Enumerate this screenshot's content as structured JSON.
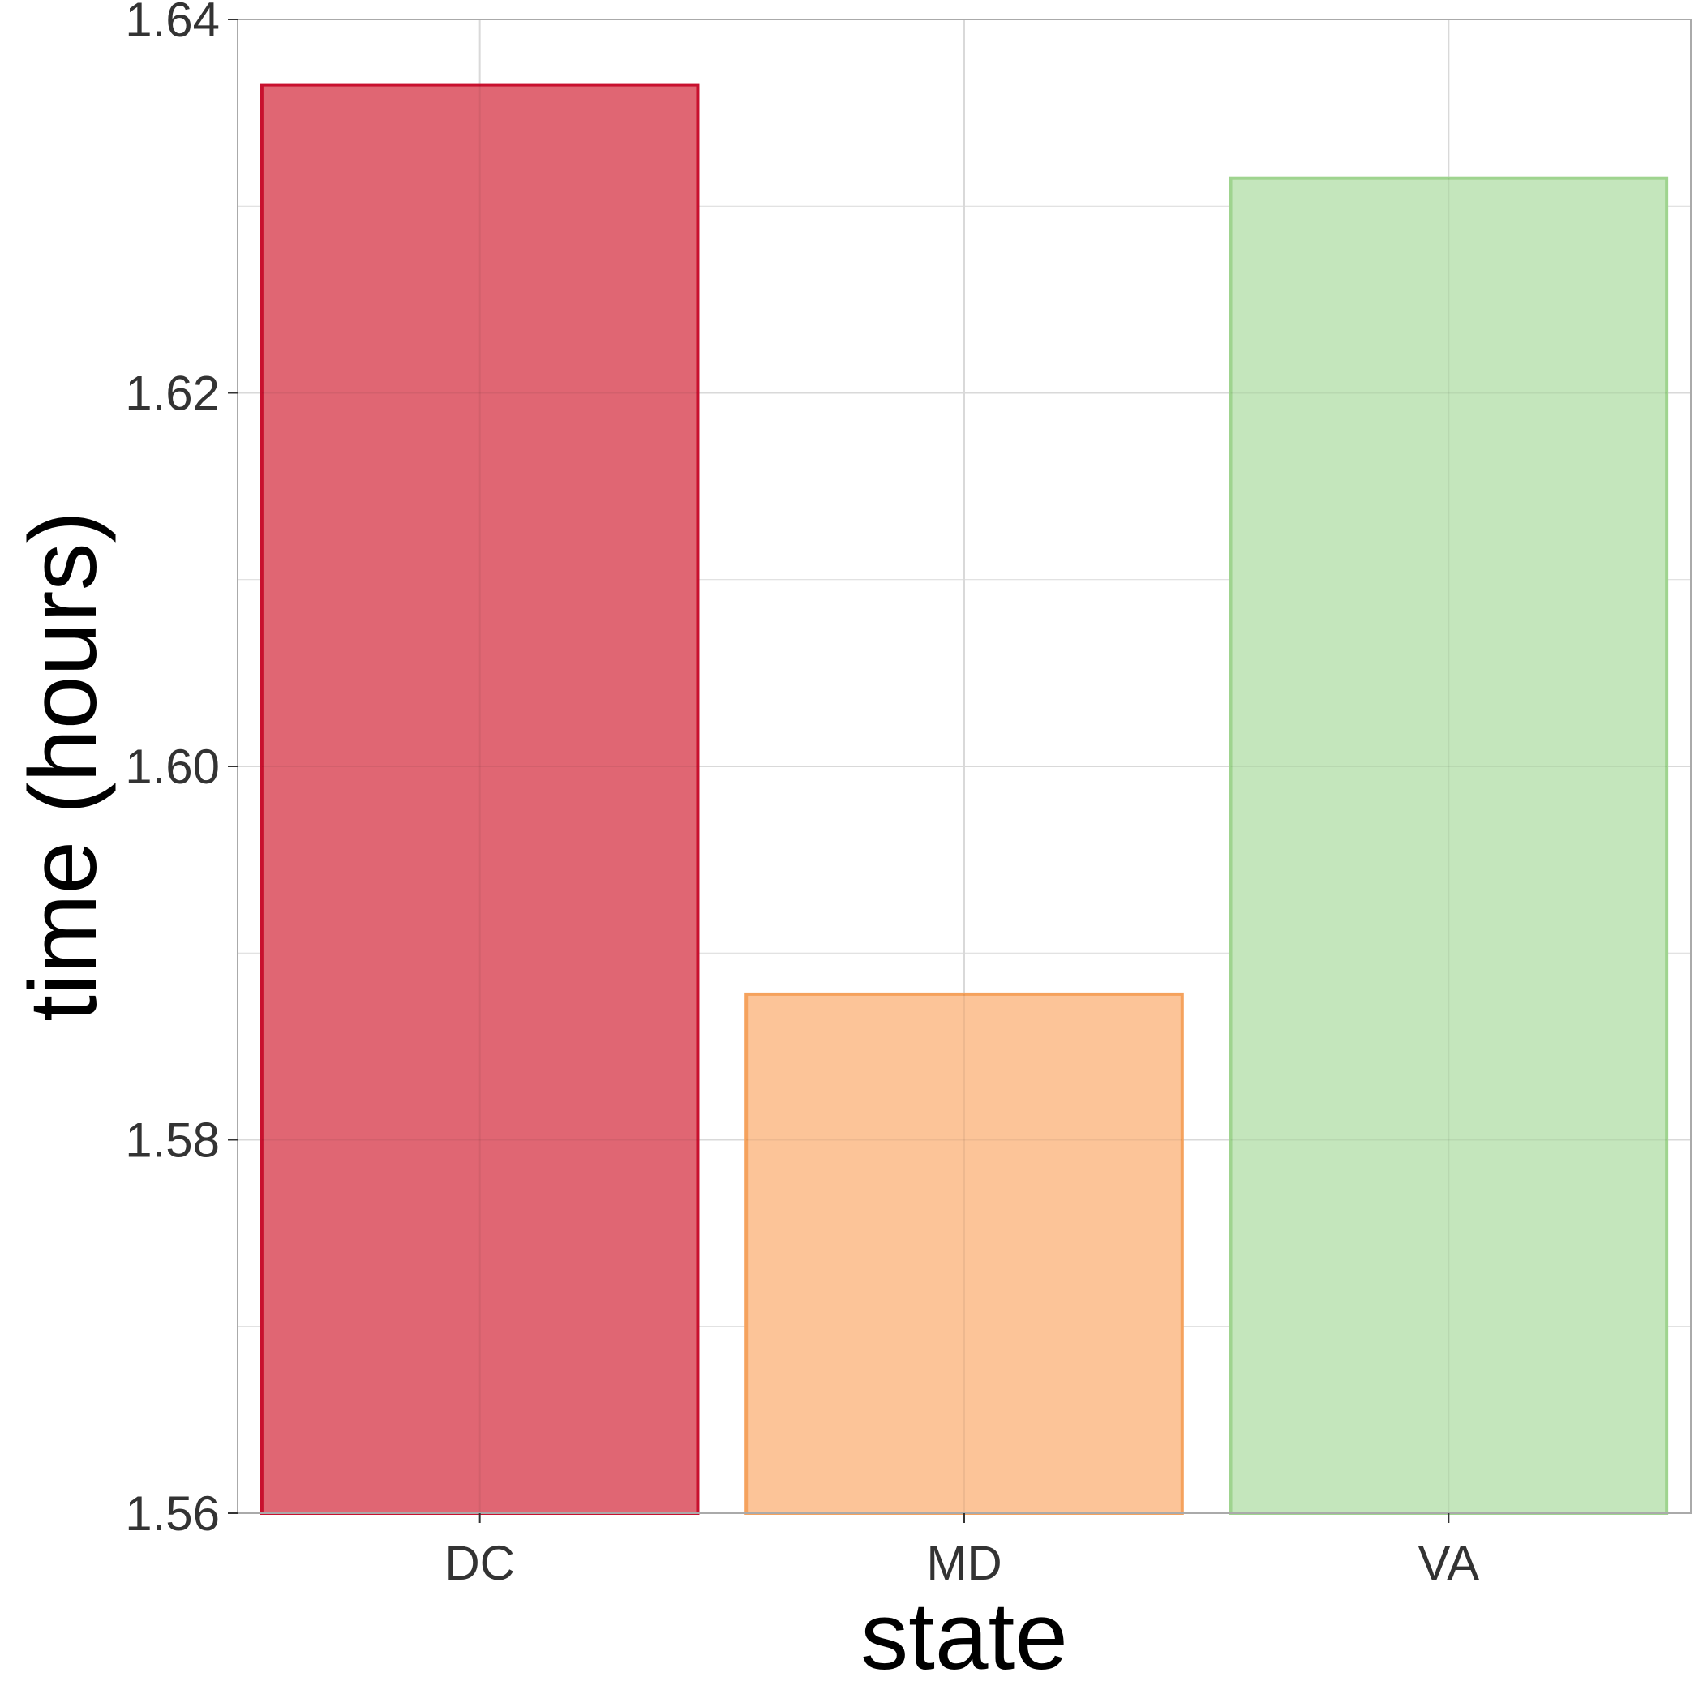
{
  "chart_data": {
    "type": "bar",
    "title": "",
    "xlabel": "state",
    "ylabel": "time (hours)",
    "categories": [
      "DC",
      "MD",
      "VA"
    ],
    "values": [
      1.6365,
      1.5878,
      1.6315
    ],
    "ylim": [
      1.56,
      1.64
    ],
    "yticks": [
      "1.56",
      "1.58",
      "1.60",
      "1.62",
      "1.64"
    ],
    "ytick_values": [
      1.56,
      1.58,
      1.6,
      1.62,
      1.64
    ],
    "grid": true,
    "legend": "none",
    "colors": {
      "fills": [
        "#e06673",
        "#fcc498",
        "#c4e6bc"
      ],
      "strokes": [
        "#c8102e",
        "#f5a25d",
        "#9fd48f"
      ],
      "gridline": "#d9d9d9",
      "panel_border": "#aaaaaa"
    }
  }
}
